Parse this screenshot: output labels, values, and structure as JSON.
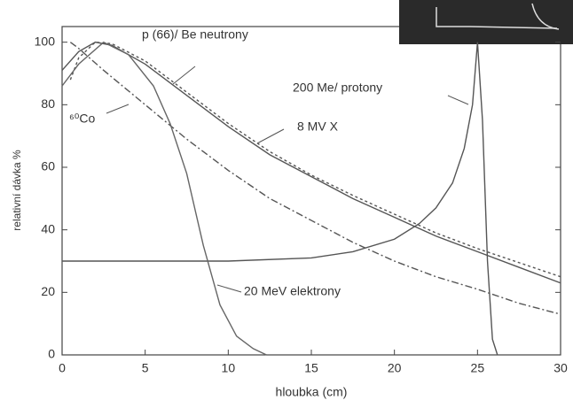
{
  "chart_data": {
    "type": "line",
    "xlabel": "hloubka (cm)",
    "ylabel": "relativní dávka %",
    "xlim": [
      0,
      30
    ],
    "ylim": [
      0,
      105
    ],
    "xticks": [
      0,
      5,
      10,
      15,
      20,
      25,
      30
    ],
    "yticks": [
      0,
      20,
      40,
      60,
      80,
      100
    ],
    "series": [
      {
        "name": "p (66)/ Be neutrony",
        "color": "#555",
        "dash": "solid",
        "x": [
          0,
          1,
          2,
          3,
          5,
          7,
          10,
          12.5,
          15,
          17.5,
          20,
          22.5,
          25,
          27.5,
          30
        ],
        "values": [
          91,
          97,
          100,
          99,
          93,
          85,
          73,
          64,
          57,
          50,
          44,
          38,
          33,
          28,
          23
        ]
      },
      {
        "name": "8 MV X",
        "color": "#555",
        "dash": "3,3",
        "x": [
          0.5,
          1,
          2,
          3,
          5,
          7,
          10,
          12.5,
          15,
          17.5,
          20,
          22.5,
          25,
          27.5,
          30
        ],
        "values": [
          88,
          95,
          100,
          99.5,
          94,
          86,
          74,
          65,
          57.5,
          51,
          45,
          39,
          34,
          29.5,
          25
        ]
      },
      {
        "name": "⁶⁰Co",
        "color": "#555",
        "dash": "8,3,2,3",
        "x": [
          0.5,
          1,
          2.5,
          5,
          7.5,
          10,
          12.5,
          15,
          17.5,
          20,
          22.5,
          25,
          27.5,
          30
        ],
        "values": [
          100,
          98,
          91,
          80,
          69,
          59,
          50,
          43,
          36,
          30,
          25,
          21,
          16.5,
          13
        ]
      },
      {
        "name": "200 Me/ protony",
        "color": "#555",
        "dash": "solid",
        "x": [
          0,
          5,
          10,
          15,
          17.5,
          20,
          21.5,
          22.5,
          23.5,
          24.2,
          24.7,
          25,
          25.3,
          25.6,
          25.9,
          26.2
        ],
        "values": [
          30,
          30,
          30,
          31,
          33,
          37,
          42,
          47,
          55,
          66,
          80,
          100,
          75,
          30,
          5,
          0
        ]
      },
      {
        "name": "20 MeV elektrony",
        "color": "#666",
        "dash": "solid",
        "x": [
          0,
          1,
          2.5,
          4,
          5.5,
          6.5,
          7.5,
          8.5,
          9.5,
          10.5,
          11.5,
          12.3
        ],
        "values": [
          86,
          93,
          100,
          96,
          86,
          74,
          58,
          35,
          16,
          6,
          2,
          0
        ]
      }
    ]
  }
}
